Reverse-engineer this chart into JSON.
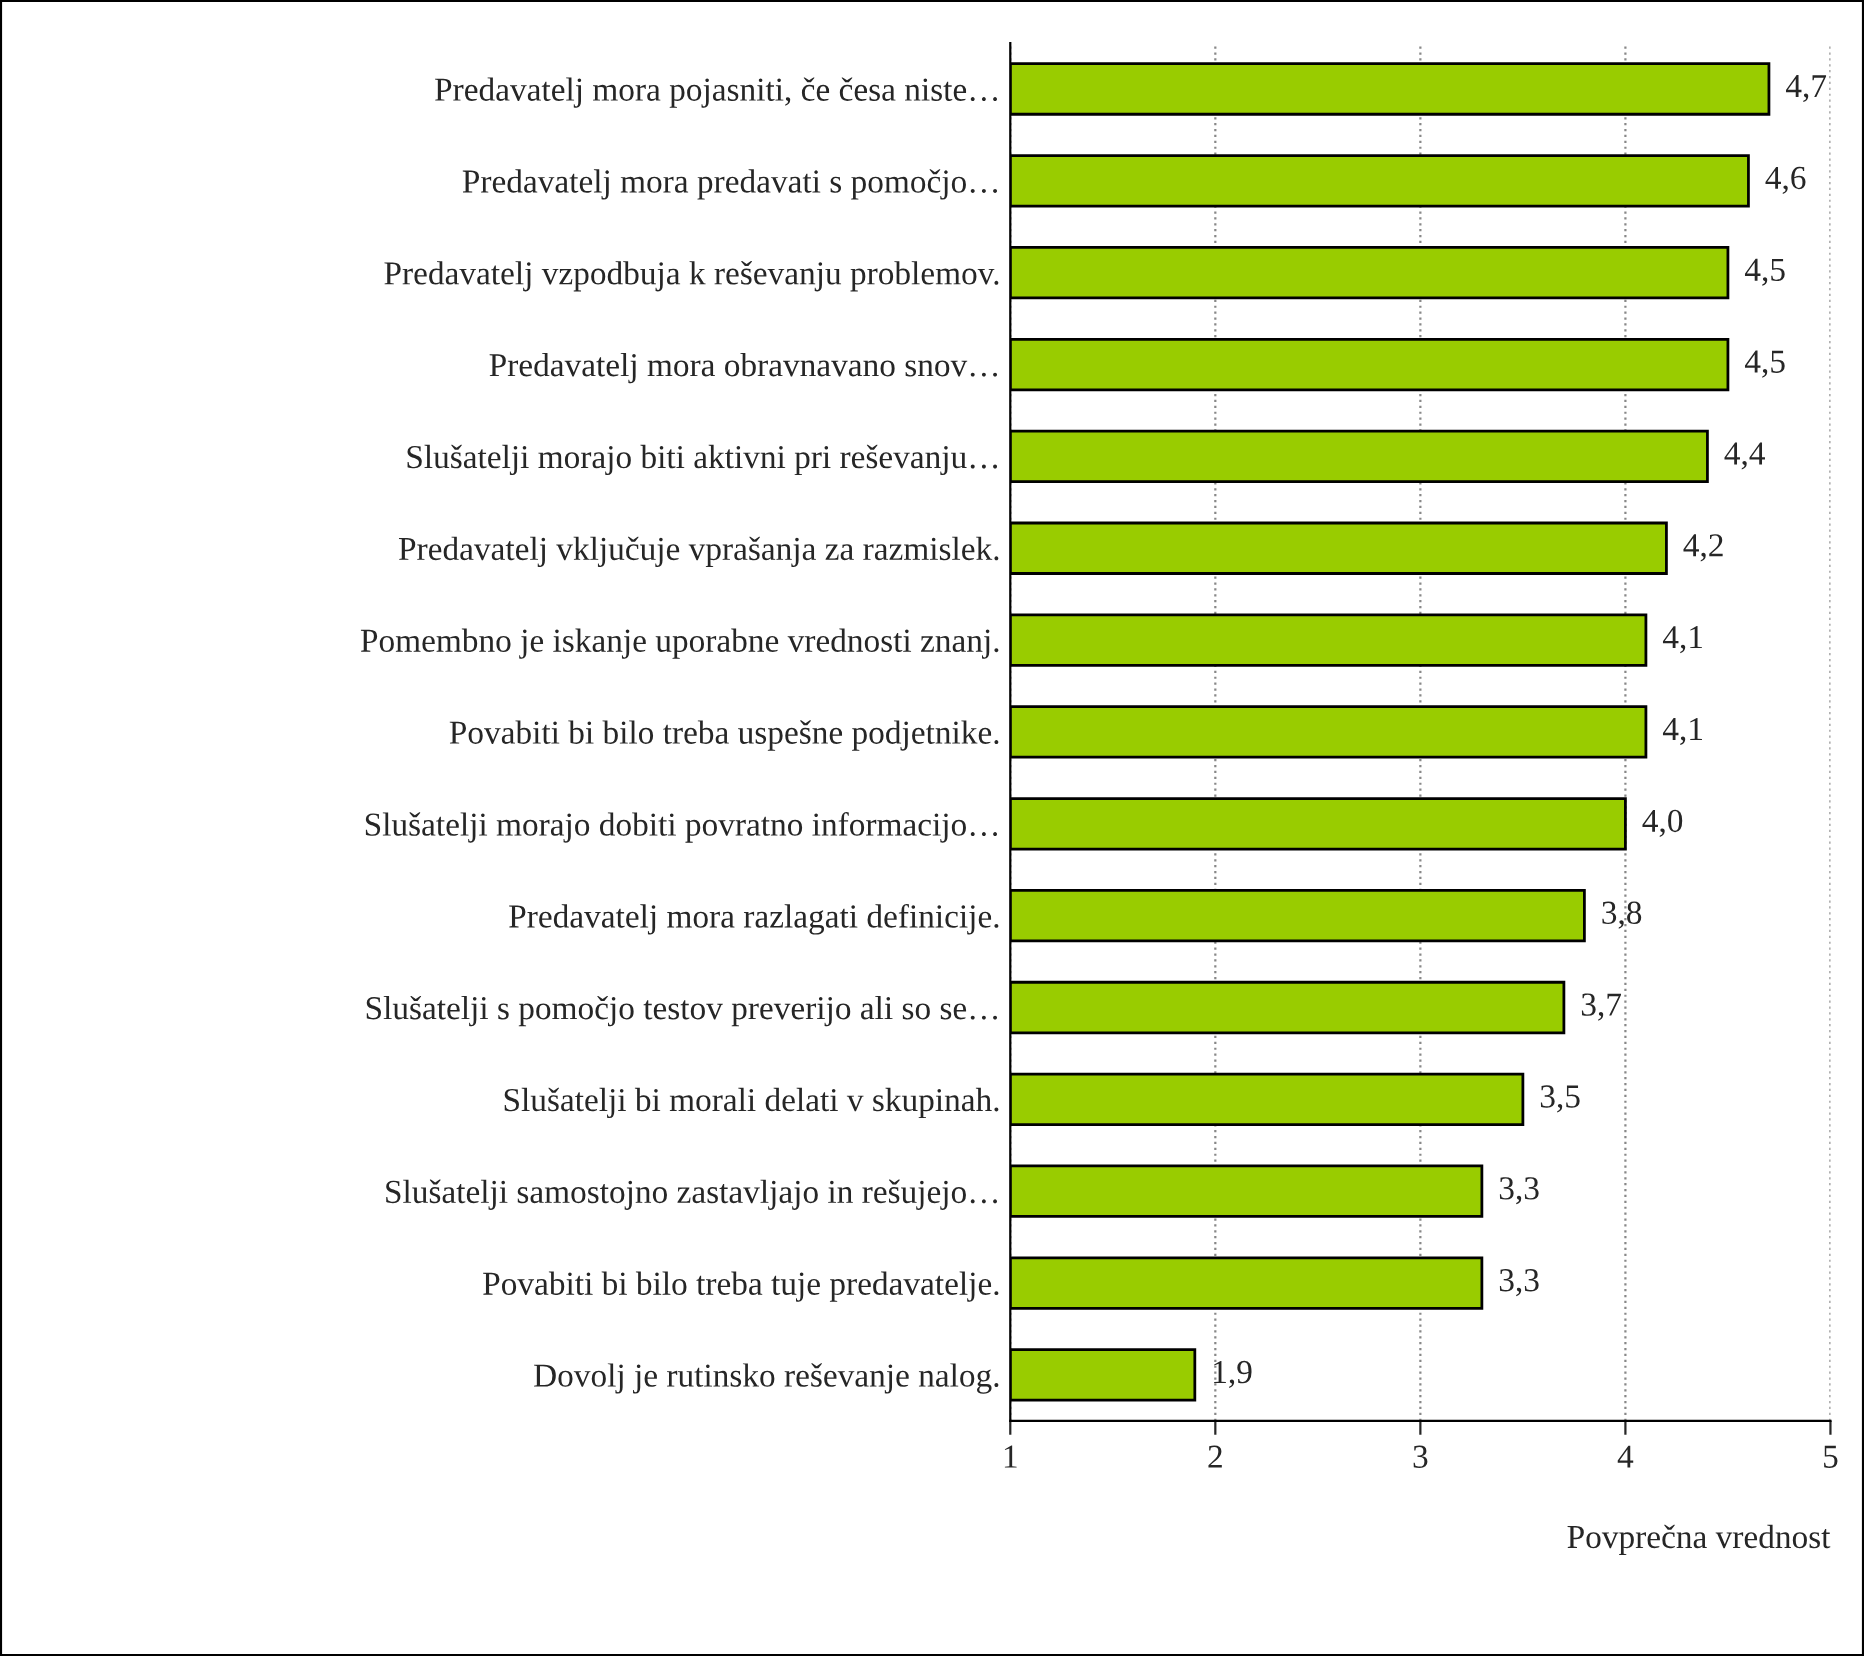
{
  "chart_data": {
    "type": "bar",
    "orientation": "horizontal",
    "xlabel": "Povprečna vrednost",
    "categories": [
      "Predavatelj mora pojasniti, če česa niste…",
      "Predavatelj mora predavati s pomočjo…",
      "Predavatelj vzpodbuja k reševanju problemov.",
      "Predavatelj mora obravnavano snov…",
      "Slušatelji morajo biti aktivni pri reševanju…",
      "Predavatelj vključuje vprašanja za razmislek.",
      "Pomembno je iskanje uporabne vrednosti znanj.",
      "Povabiti bi bilo treba uspešne podjetnike.",
      "Slušatelji morajo dobiti povratno informacijo…",
      "Predavatelj mora razlagati definicije.",
      "Slušatelji s pomočjo testov preverijo ali so se…",
      "Slušatelji bi morali delati v skupinah.",
      "Slušatelji samostojno zastavljajo in rešujejo…",
      "Povabiti bi bilo treba tuje predavatelje.",
      "Dovolj je rutinsko reševanje nalog."
    ],
    "values": [
      4.7,
      4.6,
      4.5,
      4.5,
      4.4,
      4.2,
      4.1,
      4.1,
      4.0,
      3.8,
      3.7,
      3.5,
      3.3,
      3.3,
      1.9
    ],
    "value_labels": [
      "4,7",
      "4,6",
      "4,5",
      "4,5",
      "4,4",
      "4,2",
      "4,1",
      "4,1",
      "4,0",
      "3,8",
      "3,7",
      "3,5",
      "3,3",
      "3,3",
      "1,9"
    ],
    "color": "#99cc00",
    "xlim": [
      1,
      5
    ],
    "xticks": [
      1,
      2,
      3,
      4,
      5
    ],
    "grid": "x"
  }
}
